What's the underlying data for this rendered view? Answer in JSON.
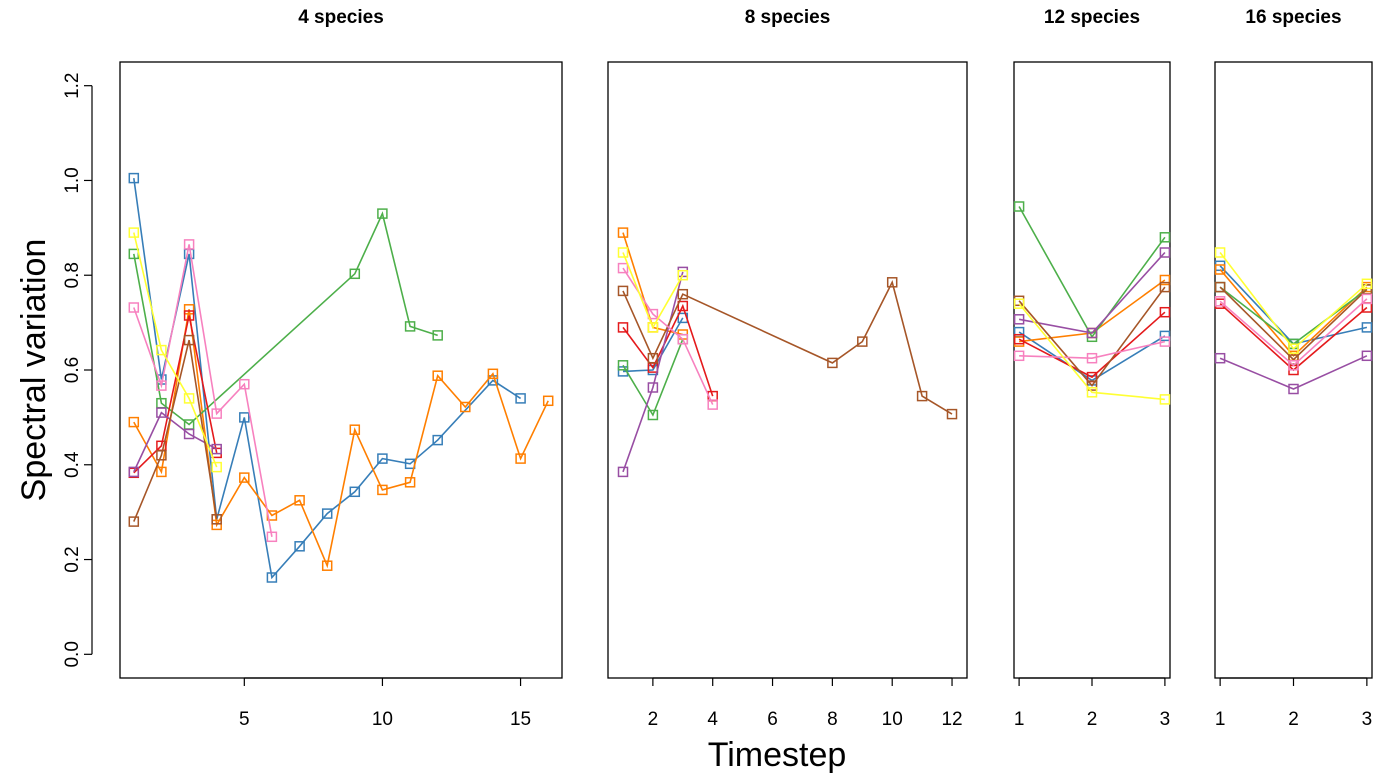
{
  "figure": {
    "ylabel": "Spectral variation",
    "xlabel": "Timestep",
    "y_ticks": [
      "0.0",
      "0.2",
      "0.4",
      "0.6",
      "0.8",
      "1.0",
      "1.2"
    ]
  },
  "colors": {
    "blue": "#377eb8",
    "orange": "#ff7f00",
    "green": "#4daf4a",
    "red": "#e41a1c",
    "purple": "#984ea3",
    "brown": "#a65628",
    "pink": "#f781bf",
    "yellow": "#ffff33"
  },
  "chart_data": [
    {
      "type": "line",
      "title": "4 species",
      "xlim": [
        0.5,
        16.5
      ],
      "ylim": [
        -0.05,
        1.25
      ],
      "x_ticks": [
        5,
        10,
        15
      ],
      "x_tick_labels": [
        "5",
        "10",
        "15"
      ],
      "series": [
        {
          "color": "blue",
          "x": [
            1,
            2,
            3,
            4,
            5,
            6,
            7,
            8,
            9,
            10,
            11,
            12,
            14,
            15
          ],
          "y": [
            1.005,
            0.58,
            0.845,
            0.285,
            0.5,
            0.162,
            0.228,
            0.297,
            0.343,
            0.413,
            0.402,
            0.452,
            0.578,
            0.54
          ]
        },
        {
          "color": "orange",
          "x": [
            1,
            2,
            3,
            4,
            5,
            6,
            7,
            8,
            9,
            10,
            11,
            12,
            13,
            14,
            15,
            16
          ],
          "y": [
            0.49,
            0.385,
            0.728,
            0.273,
            0.373,
            0.293,
            0.325,
            0.187,
            0.474,
            0.347,
            0.363,
            0.588,
            0.522,
            0.592,
            0.413,
            0.535
          ]
        },
        {
          "color": "green",
          "x": [
            1,
            2,
            3,
            9,
            10,
            11,
            12
          ],
          "y": [
            0.845,
            0.53,
            0.485,
            0.803,
            0.93,
            0.692,
            0.673
          ]
        },
        {
          "color": "red",
          "x": [
            1,
            2,
            3,
            4
          ],
          "y": [
            0.383,
            0.44,
            0.715,
            0.425
          ]
        },
        {
          "color": "purple",
          "x": [
            1,
            2,
            3,
            4
          ],
          "y": [
            0.385,
            0.51,
            0.465,
            0.433
          ]
        },
        {
          "color": "brown",
          "x": [
            1,
            2,
            3,
            4
          ],
          "y": [
            0.28,
            0.42,
            0.663,
            0.285
          ]
        },
        {
          "color": "pink",
          "x": [
            1,
            2,
            3,
            4,
            5,
            6
          ],
          "y": [
            0.732,
            0.567,
            0.865,
            0.508,
            0.57,
            0.248
          ]
        },
        {
          "color": "yellow",
          "x": [
            1,
            2,
            3,
            4
          ],
          "y": [
            0.89,
            0.642,
            0.54,
            0.395
          ]
        }
      ]
    },
    {
      "type": "line",
      "title": "8 species",
      "xlim": [
        0.5,
        12.5
      ],
      "ylim": [
        -0.05,
        1.25
      ],
      "x_ticks": [
        2,
        4,
        6,
        8,
        10,
        12
      ],
      "x_tick_labels": [
        "2",
        "4",
        "6",
        "8",
        "10",
        "12"
      ],
      "series": [
        {
          "color": "blue",
          "x": [
            1,
            2,
            3
          ],
          "y": [
            0.597,
            0.6,
            0.71
          ]
        },
        {
          "color": "orange",
          "x": [
            1,
            2,
            3
          ],
          "y": [
            0.89,
            0.69,
            0.675
          ]
        },
        {
          "color": "green",
          "x": [
            1,
            2,
            3
          ],
          "y": [
            0.61,
            0.505,
            0.665
          ]
        },
        {
          "color": "red",
          "x": [
            1,
            2,
            3,
            4
          ],
          "y": [
            0.69,
            0.605,
            0.735,
            0.545
          ]
        },
        {
          "color": "purple",
          "x": [
            1,
            2,
            3
          ],
          "y": [
            0.385,
            0.563,
            0.807
          ]
        },
        {
          "color": "brown",
          "x": [
            1,
            2,
            3,
            8,
            9,
            10,
            11,
            12
          ],
          "y": [
            0.767,
            0.625,
            0.76,
            0.615,
            0.66,
            0.785,
            0.545,
            0.507
          ]
        },
        {
          "color": "pink",
          "x": [
            1,
            2,
            3,
            4
          ],
          "y": [
            0.815,
            0.718,
            0.665,
            0.527
          ]
        },
        {
          "color": "yellow",
          "x": [
            1,
            2,
            3
          ],
          "y": [
            0.848,
            0.69,
            0.8
          ]
        }
      ]
    },
    {
      "type": "line",
      "title": "12 species",
      "xlim": [
        0.93,
        3.07
      ],
      "ylim": [
        -0.05,
        1.25
      ],
      "x_ticks": [
        1,
        2,
        3
      ],
      "x_tick_labels": [
        "1",
        "2",
        "3"
      ],
      "series": [
        {
          "color": "blue",
          "x": [
            1,
            2,
            3
          ],
          "y": [
            0.68,
            0.578,
            0.672
          ]
        },
        {
          "color": "orange",
          "x": [
            1,
            2,
            3
          ],
          "y": [
            0.66,
            0.678,
            0.79
          ]
        },
        {
          "color": "green",
          "x": [
            1,
            2,
            3
          ],
          "y": [
            0.945,
            0.67,
            0.88
          ]
        },
        {
          "color": "red",
          "x": [
            1,
            2,
            3
          ],
          "y": [
            0.665,
            0.585,
            0.722
          ]
        },
        {
          "color": "purple",
          "x": [
            1,
            2,
            3
          ],
          "y": [
            0.707,
            0.678,
            0.848
          ]
        },
        {
          "color": "brown",
          "x": [
            1,
            2,
            3
          ],
          "y": [
            0.746,
            0.567,
            0.775
          ]
        },
        {
          "color": "pink",
          "x": [
            1,
            2,
            3
          ],
          "y": [
            0.63,
            0.625,
            0.66
          ]
        },
        {
          "color": "yellow",
          "x": [
            1,
            2,
            3
          ],
          "y": [
            0.74,
            0.553,
            0.538
          ]
        }
      ]
    },
    {
      "type": "line",
      "title": "16 species",
      "xlim": [
        0.93,
        3.07
      ],
      "ylim": [
        -0.05,
        1.25
      ],
      "x_ticks": [
        1,
        2,
        3
      ],
      "x_tick_labels": [
        "1",
        "2",
        "3"
      ],
      "series": [
        {
          "color": "blue",
          "x": [
            1,
            2,
            3
          ],
          "y": [
            0.82,
            0.655,
            0.69
          ]
        },
        {
          "color": "orange",
          "x": [
            1,
            2,
            3
          ],
          "y": [
            0.812,
            0.63,
            0.775
          ]
        },
        {
          "color": "green",
          "x": [
            1,
            2,
            3
          ],
          "y": [
            0.775,
            0.655,
            0.77
          ]
        },
        {
          "color": "red",
          "x": [
            1,
            2,
            3
          ],
          "y": [
            0.74,
            0.6,
            0.732
          ]
        },
        {
          "color": "purple",
          "x": [
            1,
            2,
            3
          ],
          "y": [
            0.625,
            0.56,
            0.63
          ]
        },
        {
          "color": "brown",
          "x": [
            1,
            2,
            3
          ],
          "y": [
            0.775,
            0.622,
            0.77
          ]
        },
        {
          "color": "pink",
          "x": [
            1,
            2,
            3
          ],
          "y": [
            0.745,
            0.61,
            0.75
          ]
        },
        {
          "color": "yellow",
          "x": [
            1,
            2,
            3
          ],
          "y": [
            0.848,
            0.645,
            0.782
          ]
        }
      ]
    }
  ]
}
